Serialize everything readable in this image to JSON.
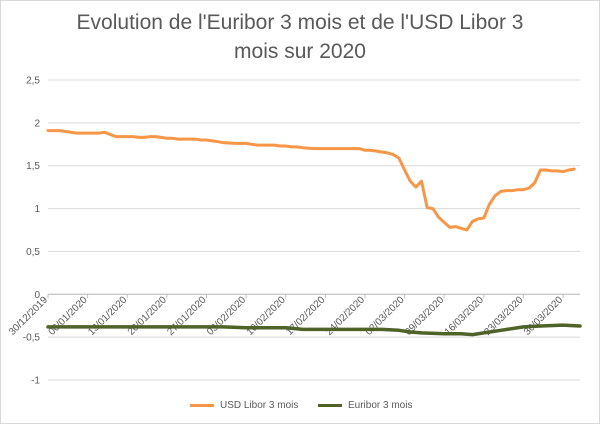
{
  "chart_data": {
    "type": "line",
    "title": "Evolution de l'Euribor 3 mois et de l'USD Libor 3 mois sur 2020",
    "title_lines": [
      "Evolution de l'Euribor 3 mois et de l'USD Libor 3",
      "mois sur 2020"
    ],
    "ylim": [
      -1,
      2.5
    ],
    "y_ticks": [
      "2,5",
      "2",
      "1,5",
      "1",
      "0,5",
      "0",
      "-0,5",
      "-1"
    ],
    "y_tick_values": [
      2.5,
      2,
      1.5,
      1,
      0.5,
      0,
      -0.5,
      -1
    ],
    "x_tick_labels": [
      "30/12/2019",
      "06/01/2020",
      "13/01/2020",
      "20/01/2020",
      "27/01/2020",
      "03/02/2020",
      "10/02/2020",
      "17/02/2020",
      "24/02/2020",
      "02/03/2020",
      "09/03/2020",
      "16/03/2020",
      "23/03/2020",
      "30/03/2020"
    ],
    "x_tick_days": [
      0,
      7,
      14,
      21,
      28,
      35,
      42,
      49,
      56,
      63,
      70,
      77,
      84,
      91
    ],
    "x_range_days": [
      0,
      94
    ],
    "grid": true,
    "legend_position": "bottom",
    "series": [
      {
        "name": "USD Libor 3 mois",
        "color": "#f79646",
        "x_days": [
          0,
          2,
          3,
          5,
          6,
          7,
          8,
          9,
          10,
          12,
          13,
          14,
          15,
          16,
          17,
          18,
          19,
          20,
          21,
          22,
          23,
          24,
          26,
          27,
          28,
          29,
          30,
          31,
          33,
          34,
          35,
          36,
          37,
          38,
          40,
          41,
          42,
          43,
          44,
          45,
          47,
          48,
          49,
          50,
          51,
          52,
          54,
          55,
          56,
          57,
          58,
          59,
          60,
          61,
          62,
          63,
          64,
          65,
          66,
          67,
          68,
          69,
          70,
          71,
          72,
          73,
          74,
          75,
          76,
          77,
          78,
          79,
          80,
          81,
          82,
          83,
          84,
          85,
          86,
          87,
          88,
          89,
          90,
          91,
          92,
          93
        ],
        "values": [
          1.91,
          1.91,
          1.9,
          1.88,
          1.88,
          1.88,
          1.88,
          1.88,
          1.89,
          1.84,
          1.84,
          1.84,
          1.84,
          1.83,
          1.83,
          1.84,
          1.84,
          1.83,
          1.82,
          1.82,
          1.81,
          1.81,
          1.81,
          1.8,
          1.8,
          1.79,
          1.78,
          1.77,
          1.76,
          1.76,
          1.76,
          1.75,
          1.74,
          1.74,
          1.74,
          1.73,
          1.73,
          1.72,
          1.72,
          1.71,
          1.7,
          1.7,
          1.7,
          1.7,
          1.7,
          1.7,
          1.7,
          1.7,
          1.68,
          1.68,
          1.67,
          1.66,
          1.65,
          1.63,
          1.59,
          1.45,
          1.32,
          1.25,
          1.32,
          1.01,
          1.0,
          0.9,
          0.84,
          0.78,
          0.79,
          0.77,
          0.75,
          0.85,
          0.88,
          0.89,
          1.05,
          1.15,
          1.2,
          1.21,
          1.21,
          1.22,
          1.22,
          1.24,
          1.3,
          1.45,
          1.45,
          1.44,
          1.44,
          1.43,
          1.45,
          1.46
        ]
      },
      {
        "name": "Euribor 3 mois",
        "color": "#4f6228",
        "x_days": [
          0,
          3,
          7,
          10,
          14,
          17,
          21,
          24,
          28,
          31,
          35,
          38,
          42,
          45,
          49,
          52,
          56,
          59,
          62,
          64,
          66,
          70,
          73,
          75,
          77,
          80,
          84,
          87,
          91,
          94
        ],
        "values": [
          -0.38,
          -0.38,
          -0.38,
          -0.38,
          -0.38,
          -0.38,
          -0.38,
          -0.38,
          -0.38,
          -0.38,
          -0.39,
          -0.39,
          -0.39,
          -0.41,
          -0.41,
          -0.41,
          -0.41,
          -0.41,
          -0.42,
          -0.44,
          -0.45,
          -0.46,
          -0.46,
          -0.47,
          -0.45,
          -0.42,
          -0.38,
          -0.37,
          -0.36,
          -0.37
        ]
      }
    ]
  }
}
